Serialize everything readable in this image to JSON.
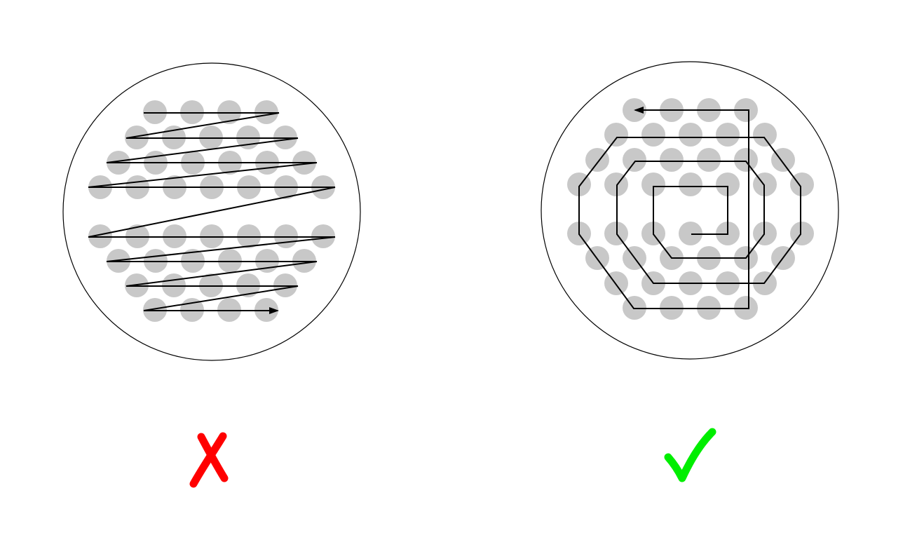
{
  "colors": {
    "background": "#ffffff",
    "outline": "#000000",
    "dot": "#c8c8c8",
    "path": "#000000",
    "wrong": "#ff0000",
    "right": "#00ee00"
  },
  "panels": [
    {
      "id": "zigzag",
      "pattern": "raster-zigzag",
      "verdict": "wrong",
      "verdict_icon": "cross-icon"
    },
    {
      "id": "spiral",
      "pattern": "spiral",
      "verdict": "correct",
      "verdict_icon": "checkmark-icon"
    }
  ]
}
